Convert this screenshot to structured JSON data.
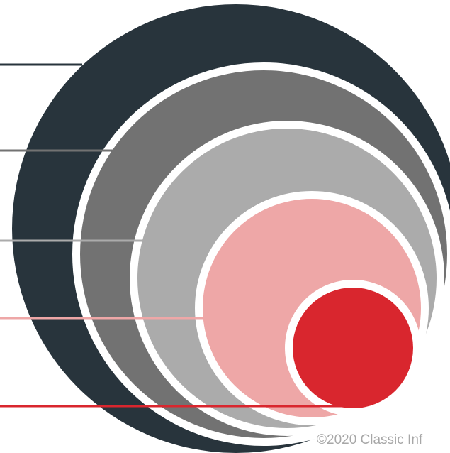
{
  "colors": {
    "background": "#ffffff",
    "ring_1": "#28343c",
    "ring_2": "#727272",
    "ring_3": "#ababab",
    "ring_4": "#eea7a7",
    "ring_5": "#d9262e",
    "separator": "#ffffff",
    "copyright_text": "#a7a7a7"
  },
  "levels": [
    {
      "id": "level-1",
      "color": "#28343c"
    },
    {
      "id": "level-2",
      "color": "#727272"
    },
    {
      "id": "level-3",
      "color": "#ababab"
    },
    {
      "id": "level-4",
      "color": "#eea7a7"
    },
    {
      "id": "level-5",
      "color": "#d9262e"
    }
  ],
  "footer": {
    "copyright": "©2020 Classic Inf"
  }
}
